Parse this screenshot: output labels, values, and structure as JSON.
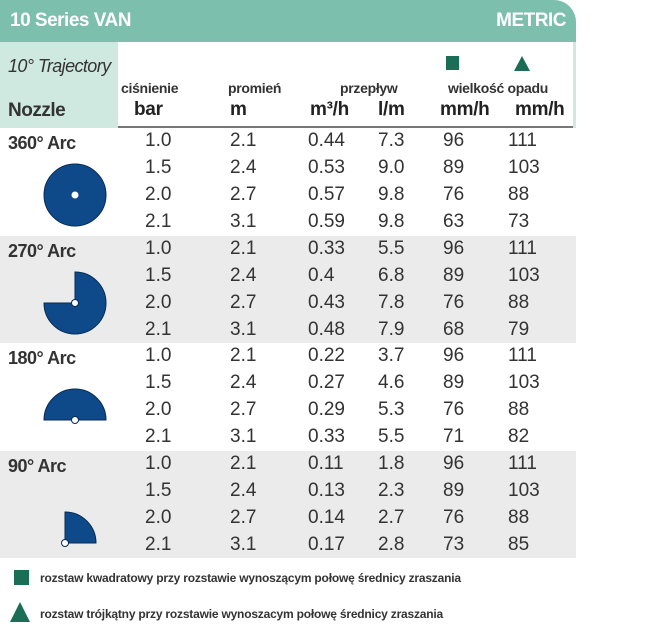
{
  "header": {
    "title": "10 Series VAN",
    "units": "METRIC"
  },
  "subheader": {
    "trajectory": "10° Trajectory",
    "nozzle": "Nozzle",
    "labels": {
      "pressure": "ciśnienie",
      "radius": "promień",
      "flow": "przepływ",
      "precip": "wielkość opadu"
    },
    "units": [
      "bar",
      "m",
      "m³/h",
      "l/m",
      "mm/h",
      "mm/h"
    ]
  },
  "colors": {
    "header": "#7cbfad",
    "nozzle": "#0e4a8a",
    "symbol": "#1a6e55"
  },
  "groups": [
    {
      "arc": "360° Arc",
      "rows": [
        [
          "1.0",
          "2.1",
          "0.44",
          "7.3",
          "96",
          "111"
        ],
        [
          "1.5",
          "2.4",
          "0.53",
          "9.0",
          "89",
          "103"
        ],
        [
          "2.0",
          "2.7",
          "0.57",
          "9.8",
          "76",
          "88"
        ],
        [
          "2.1",
          "3.1",
          "0.59",
          "9.8",
          "63",
          "73"
        ]
      ]
    },
    {
      "arc": "270° Arc",
      "rows": [
        [
          "1.0",
          "2.1",
          "0.33",
          "5.5",
          "96",
          "111"
        ],
        [
          "1.5",
          "2.4",
          "0.4",
          "6.8",
          "89",
          "103"
        ],
        [
          "2.0",
          "2.7",
          "0.43",
          "7.8",
          "76",
          "88"
        ],
        [
          "2.1",
          "3.1",
          "0.48",
          "7.9",
          "68",
          "79"
        ]
      ]
    },
    {
      "arc": "180° Arc",
      "rows": [
        [
          "1.0",
          "2.1",
          "0.22",
          "3.7",
          "96",
          "111"
        ],
        [
          "1.5",
          "2.4",
          "0.27",
          "4.6",
          "89",
          "103"
        ],
        [
          "2.0",
          "2.7",
          "0.29",
          "5.3",
          "76",
          "88"
        ],
        [
          "2.1",
          "3.1",
          "0.33",
          "5.5",
          "71",
          "82"
        ]
      ]
    },
    {
      "arc": "90° Arc",
      "rows": [
        [
          "1.0",
          "2.1",
          "0.11",
          "1.8",
          "96",
          "111"
        ],
        [
          "1.5",
          "2.4",
          "0.13",
          "2.3",
          "89",
          "103"
        ],
        [
          "2.0",
          "2.7",
          "0.14",
          "2.7",
          "76",
          "88"
        ],
        [
          "2.1",
          "3.1",
          "0.17",
          "2.8",
          "73",
          "85"
        ]
      ]
    }
  ],
  "legend": {
    "square": "rozstaw kwadratowy przy rozstawie wynoszącym połowę średnicy zraszania",
    "triangle": "rozstaw trójkątny przy rozstawie wynoszacym połowę średnicy zraszania"
  }
}
